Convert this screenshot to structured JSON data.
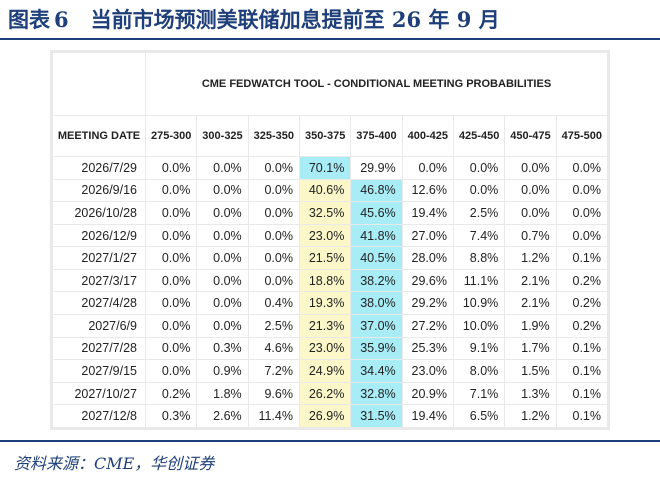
{
  "figure": {
    "label": "图表",
    "number": "6",
    "title": "当前市场预测美联储加息提前至 26 年 9 月"
  },
  "table": {
    "tool_title": "CME FEDWATCH TOOL - CONDITIONAL MEETING PROBABILITIES",
    "date_header": "MEETING DATE",
    "columns": [
      "275-300",
      "300-325",
      "325-350",
      "350-375",
      "375-400",
      "400-425",
      "425-450",
      "450-475",
      "475-500"
    ],
    "highlight": {
      "yellow": "#fbf7c8",
      "cyan": "#a8ecf6"
    },
    "rows": [
      {
        "date": "2026/7/29",
        "values": [
          "0.0%",
          "0.0%",
          "0.0%",
          "70.1%",
          "29.9%",
          "0.0%",
          "0.0%",
          "0.0%",
          "0.0%"
        ],
        "hl": [
          "",
          "",
          "",
          "cy",
          "",
          "",
          "",
          "",
          ""
        ]
      },
      {
        "date": "2026/9/16",
        "values": [
          "0.0%",
          "0.0%",
          "0.0%",
          "40.6%",
          "46.8%",
          "12.6%",
          "0.0%",
          "0.0%",
          "0.0%"
        ],
        "hl": [
          "",
          "",
          "",
          "yel",
          "cy",
          "",
          "",
          "",
          ""
        ]
      },
      {
        "date": "2026/10/28",
        "values": [
          "0.0%",
          "0.0%",
          "0.0%",
          "32.5%",
          "45.6%",
          "19.4%",
          "2.5%",
          "0.0%",
          "0.0%"
        ],
        "hl": [
          "",
          "",
          "",
          "yel",
          "cy",
          "",
          "",
          "",
          ""
        ]
      },
      {
        "date": "2026/12/9",
        "values": [
          "0.0%",
          "0.0%",
          "0.0%",
          "23.0%",
          "41.8%",
          "27.0%",
          "7.4%",
          "0.7%",
          "0.0%"
        ],
        "hl": [
          "",
          "",
          "",
          "yel",
          "cy",
          "",
          "",
          "",
          ""
        ]
      },
      {
        "date": "2027/1/27",
        "values": [
          "0.0%",
          "0.0%",
          "0.0%",
          "21.5%",
          "40.5%",
          "28.0%",
          "8.8%",
          "1.2%",
          "0.1%"
        ],
        "hl": [
          "",
          "",
          "",
          "yel",
          "cy",
          "",
          "",
          "",
          ""
        ]
      },
      {
        "date": "2027/3/17",
        "values": [
          "0.0%",
          "0.0%",
          "0.0%",
          "18.8%",
          "38.2%",
          "29.6%",
          "11.1%",
          "2.1%",
          "0.2%"
        ],
        "hl": [
          "",
          "",
          "",
          "yel",
          "cy",
          "",
          "",
          "",
          ""
        ]
      },
      {
        "date": "2027/4/28",
        "values": [
          "0.0%",
          "0.0%",
          "0.4%",
          "19.3%",
          "38.0%",
          "29.2%",
          "10.9%",
          "2.1%",
          "0.2%"
        ],
        "hl": [
          "",
          "",
          "",
          "yel",
          "cy",
          "",
          "",
          "",
          ""
        ]
      },
      {
        "date": "2027/6/9",
        "values": [
          "0.0%",
          "0.0%",
          "2.5%",
          "21.3%",
          "37.0%",
          "27.2%",
          "10.0%",
          "1.9%",
          "0.2%"
        ],
        "hl": [
          "",
          "",
          "",
          "yel",
          "cy",
          "",
          "",
          "",
          ""
        ]
      },
      {
        "date": "2027/7/28",
        "values": [
          "0.0%",
          "0.3%",
          "4.6%",
          "23.0%",
          "35.9%",
          "25.3%",
          "9.1%",
          "1.7%",
          "0.1%"
        ],
        "hl": [
          "",
          "",
          "",
          "yel",
          "cy",
          "",
          "",
          "",
          ""
        ]
      },
      {
        "date": "2027/9/15",
        "values": [
          "0.0%",
          "0.9%",
          "7.2%",
          "24.9%",
          "34.4%",
          "23.0%",
          "8.0%",
          "1.5%",
          "0.1%"
        ],
        "hl": [
          "",
          "",
          "",
          "yel",
          "cy",
          "",
          "",
          "",
          ""
        ]
      },
      {
        "date": "2027/10/27",
        "values": [
          "0.2%",
          "1.8%",
          "9.6%",
          "26.2%",
          "32.8%",
          "20.9%",
          "7.1%",
          "1.3%",
          "0.1%"
        ],
        "hl": [
          "",
          "",
          "",
          "yel",
          "cy",
          "",
          "",
          "",
          ""
        ]
      },
      {
        "date": "2027/12/8",
        "values": [
          "0.3%",
          "2.6%",
          "11.4%",
          "26.9%",
          "31.5%",
          "19.4%",
          "6.5%",
          "1.2%",
          "0.1%"
        ],
        "hl": [
          "",
          "",
          "",
          "yel",
          "cy",
          "",
          "",
          "",
          ""
        ]
      }
    ]
  },
  "source": "资料来源：CME，华创证券"
}
